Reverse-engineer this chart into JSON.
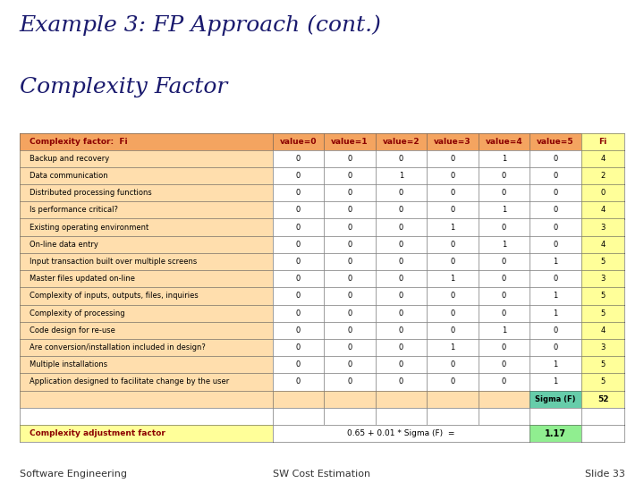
{
  "title_line1": "Example 3: FP Approach (cont.)",
  "title_line2": "Complexity Factor",
  "title_color": "#1a1a6e",
  "title_fontsize": 18,
  "divider_color": "#CC0000",
  "footer_left": "Software Engineering",
  "footer_center": "SW Cost Estimation",
  "footer_right": "Slide 33",
  "footer_fontsize": 8,
  "bg_color": "#FFFFFF",
  "header_bg": "#F4A460",
  "row_bg_light": "#FFDEAD",
  "row_bg_white": "#FFFFFF",
  "fi_col_bg": "#FFFF99",
  "sigma_bg": "#66CDAA",
  "caf_label_bg": "#FFFF99",
  "caf_value_bg": "#90EE90",
  "col_headers": [
    "Complexity factor:  Fi",
    "value=0",
    "value=1",
    "value=2",
    "value=3",
    "value=4",
    "value=5",
    "Fi"
  ],
  "rows": [
    [
      "Backup and recovery",
      "0",
      "0",
      "0",
      "0",
      "1",
      "0",
      "4"
    ],
    [
      "Data communication",
      "0",
      "0",
      "1",
      "0",
      "0",
      "0",
      "2"
    ],
    [
      "Distributed processing functions",
      "0",
      "0",
      "0",
      "0",
      "0",
      "0",
      "0"
    ],
    [
      "Is performance critical?",
      "0",
      "0",
      "0",
      "0",
      "1",
      "0",
      "4"
    ],
    [
      "Existing operating environment",
      "0",
      "0",
      "0",
      "1",
      "0",
      "0",
      "3"
    ],
    [
      "On-line data entry",
      "0",
      "0",
      "0",
      "0",
      "1",
      "0",
      "4"
    ],
    [
      "Input transaction built over multiple screens",
      "0",
      "0",
      "0",
      "0",
      "0",
      "1",
      "5"
    ],
    [
      "Master files updated on-line",
      "0",
      "0",
      "0",
      "1",
      "0",
      "0",
      "3"
    ],
    [
      "Complexity of inputs, outputs, files, inquiries",
      "0",
      "0",
      "0",
      "0",
      "0",
      "1",
      "5"
    ],
    [
      "Complexity of processing",
      "0",
      "0",
      "0",
      "0",
      "0",
      "1",
      "5"
    ],
    [
      "Code design for re-use",
      "0",
      "0",
      "0",
      "0",
      "1",
      "0",
      "4"
    ],
    [
      "Are conversion/installation included in design?",
      "0",
      "0",
      "0",
      "1",
      "0",
      "0",
      "3"
    ],
    [
      "Multiple installations",
      "0",
      "0",
      "0",
      "0",
      "0",
      "1",
      "5"
    ],
    [
      "Application designed to facilitate change by the user",
      "0",
      "0",
      "0",
      "0",
      "0",
      "1",
      "5"
    ]
  ],
  "sigma_label": "Sigma (F)",
  "sigma_value": "52",
  "caf_label": "Complexity adjustment factor",
  "caf_formula": "0.65 + 0.01 * Sigma (F)  =",
  "caf_result": "1.17",
  "header_text_color": "#8B0000",
  "row_text_color": "#000000",
  "col_widths_rel": [
    3.2,
    0.65,
    0.65,
    0.65,
    0.65,
    0.65,
    0.65,
    0.55
  ]
}
